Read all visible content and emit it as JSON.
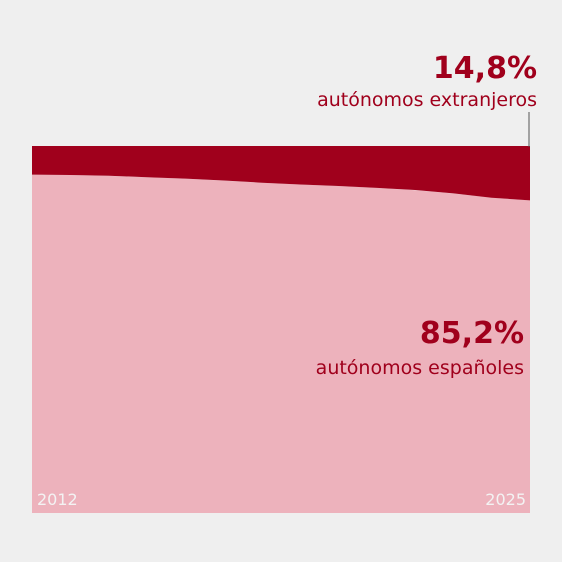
{
  "chart_data": {
    "type": "area",
    "stacked": true,
    "percent": true,
    "x_labels": [
      "2012",
      "2025"
    ],
    "x": [
      2012,
      2013,
      2014,
      2015,
      2016,
      2017,
      2018,
      2019,
      2020,
      2021,
      2022,
      2023,
      2024,
      2025
    ],
    "series": [
      {
        "values": [
          92.2,
          92.1,
          91.9,
          91.5,
          91.1,
          90.6,
          90.0,
          89.5,
          89.1,
          88.6,
          88.0,
          87.1,
          85.9,
          85.2
        ],
        "color": "#edb2bc"
      },
      {
        "values": [
          7.8,
          7.9,
          8.1,
          8.5,
          8.9,
          9.4,
          10.0,
          10.5,
          10.9,
          11.4,
          12.0,
          12.9,
          14.1,
          14.8
        ],
        "color": "#a0001c"
      }
    ],
    "ylim": [
      0,
      100
    ],
    "annotations": [
      {
        "value": "14,8%",
        "text": "autónomos extranjeros"
      },
      {
        "value": "85,2%",
        "text": "autónomos españoles"
      }
    ],
    "colors": {
      "label": "#a0001c",
      "leader_line": "#555555",
      "year_text": "#f3f3f3"
    }
  }
}
